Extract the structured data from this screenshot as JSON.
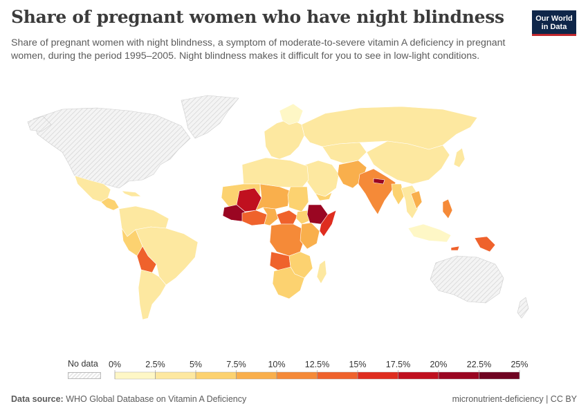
{
  "header": {
    "title": "Share of pregnant women who have night blindness",
    "subtitle": "Share of pregnant women with night blindness, a symptom of moderate-to-severe vitamin A deficiency in pregnant women, during the period 1995–2005. Night blindness makes it difficult for you to see in low-light conditions."
  },
  "logo": {
    "line1": "Our World",
    "line2": "in Data"
  },
  "legend": {
    "no_data_label": "No data",
    "ticks": [
      "0%",
      "2.5%",
      "5%",
      "7.5%",
      "10%",
      "12.5%",
      "15%",
      "17.5%",
      "20%",
      "22.5%",
      "25%"
    ],
    "colors": [
      "#fef7c6",
      "#fde8a0",
      "#fcd270",
      "#f9af4c",
      "#f58a38",
      "#ef622c",
      "#df2d1f",
      "#c0101f",
      "#9a0622",
      "#6f0321"
    ]
  },
  "footer": {
    "source_label": "Data source:",
    "source_text": "WHO Global Database on Vitamin A Deficiency",
    "right_text": "micronutrient-deficiency | CC BY"
  },
  "map_style": {
    "no_data_fill": "#f2f2f2",
    "border_color": "#ffffff"
  }
}
